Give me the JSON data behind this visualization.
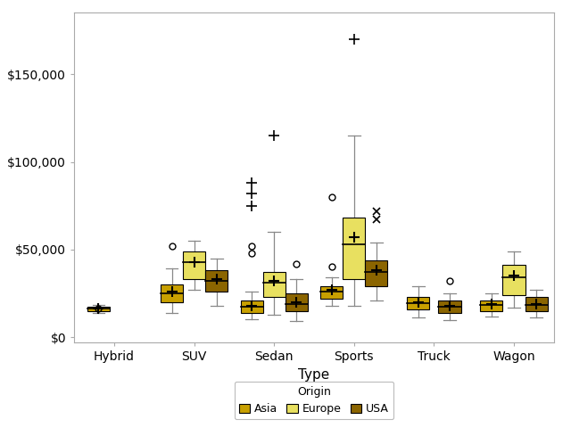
{
  "categories": [
    "Hybrid",
    "SUV",
    "Sedan",
    "Sports",
    "Truck",
    "Wagon"
  ],
  "origins": [
    "Asia",
    "Europe",
    "USA"
  ],
  "colors": {
    "Asia": "#C8A000",
    "Europe": "#E8E060",
    "USA": "#8B6500"
  },
  "xlabel": "Type",
  "ylim": [
    -3000,
    185000
  ],
  "yticks": [
    0,
    50000,
    100000,
    150000
  ],
  "yticklabels": [
    "$0",
    "$50,000",
    "$100,000",
    "$150,000"
  ],
  "box_width": 0.28,
  "box_stats": {
    "Hybrid": {
      "Asia": [
        15000,
        16200,
        17500,
        14000,
        18500,
        16200
      ],
      "Europe": null,
      "USA": null
    },
    "SUV": {
      "Asia": [
        20000,
        25000,
        30000,
        14000,
        39000,
        26000
      ],
      "Europe": [
        33000,
        43000,
        49000,
        27000,
        55000,
        43000
      ],
      "USA": [
        26000,
        32000,
        38000,
        18000,
        45000,
        33000
      ]
    },
    "Sedan": {
      "Asia": [
        14000,
        17500,
        21000,
        10000,
        26000,
        18000
      ],
      "Europe": [
        23000,
        31000,
        37000,
        13000,
        60000,
        32000
      ],
      "USA": [
        15000,
        19000,
        25000,
        9000,
        33000,
        20000
      ]
    },
    "Sports": {
      "Asia": [
        22000,
        26000,
        29000,
        18000,
        34000,
        27000
      ],
      "Europe": [
        33000,
        53000,
        68000,
        18000,
        115000,
        57000
      ],
      "USA": [
        29000,
        37000,
        44000,
        21000,
        54000,
        38000
      ]
    },
    "Truck": {
      "Asia": [
        16000,
        19500,
        23000,
        11000,
        29000,
        20000
      ],
      "Europe": null,
      "USA": [
        14000,
        17500,
        21000,
        9500,
        25000,
        18000
      ]
    },
    "Wagon": {
      "Asia": [
        15000,
        18500,
        21000,
        12000,
        25000,
        19000
      ],
      "Europe": [
        24000,
        34000,
        41000,
        17000,
        49000,
        35000
      ],
      "USA": [
        15000,
        18500,
        23000,
        11000,
        27000,
        19000
      ]
    }
  },
  "outliers": {
    "Hybrid": {
      "Asia": [
        [
          16200,
          "o"
        ]
      ],
      "Europe": [],
      "USA": []
    },
    "SUV": {
      "Asia": [
        [
          52000,
          "o"
        ]
      ],
      "Europe": [],
      "USA": []
    },
    "Sedan": {
      "Asia": [
        [
          88000,
          "+"
        ],
        [
          82000,
          "+"
        ],
        [
          75000,
          "+"
        ],
        [
          52000,
          "o"
        ],
        [
          48000,
          "o"
        ]
      ],
      "Europe": [
        [
          115000,
          "+"
        ]
      ],
      "USA": [
        [
          42000,
          "o"
        ]
      ]
    },
    "Sports": {
      "Asia": [
        [
          80000,
          "o"
        ],
        [
          40000,
          "o"
        ]
      ],
      "Europe": [
        [
          170000,
          "+"
        ]
      ],
      "USA": [
        [
          72000,
          "x"
        ],
        [
          67000,
          "x"
        ]
      ]
    },
    "Truck": {
      "Asia": [],
      "Europe": [],
      "USA": [
        [
          32000,
          "o"
        ]
      ]
    },
    "Wagon": {
      "Asia": [],
      "Europe": [],
      "USA": []
    }
  },
  "background_color": "#FFFFFF",
  "spine_color": "#AAAAAA"
}
